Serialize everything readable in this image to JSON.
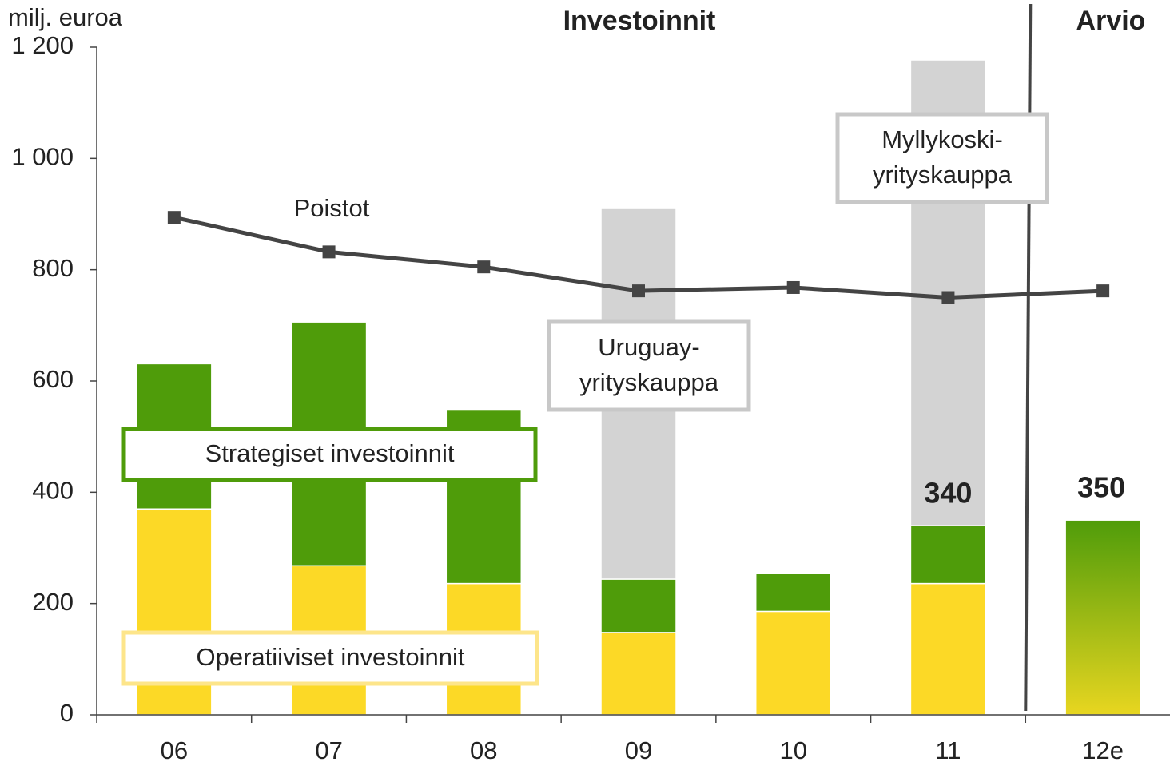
{
  "chart_data": {
    "type": "bar",
    "y_label": "milj. euroa",
    "headers": [
      "Investoinnit",
      "Arvio"
    ],
    "categories": [
      "06",
      "07",
      "08",
      "09",
      "10",
      "11",
      "12e"
    ],
    "series": [
      {
        "name": "Operatiiviset investoinnit",
        "color": "#fcd926",
        "values": [
          370,
          268,
          236,
          148,
          186,
          236,
          null
        ]
      },
      {
        "name": "Strategiset investoinnit",
        "color": "#4f9c0a",
        "values": [
          261,
          438,
          313,
          96,
          69,
          104,
          null
        ]
      },
      {
        "color": "#d3d3d3",
        "values": [
          null,
          null,
          null,
          666,
          null,
          837,
          null
        ]
      },
      {
        "color": "#4f9c0a",
        "gradient": [
          "#4f9c0a",
          "#e8d620"
        ],
        "values": [
          null,
          null,
          null,
          null,
          null,
          null,
          350
        ]
      }
    ],
    "line": {
      "name": "Poistot",
      "color": "#444444",
      "values": [
        894,
        832,
        805,
        762,
        768,
        750,
        762
      ]
    },
    "total_labels": [
      null,
      null,
      null,
      null,
      null,
      340,
      350
    ],
    "annotations": [
      {
        "lines": [
          "Uruguay-",
          "yrityskauppa"
        ]
      },
      {
        "lines": [
          "Myllykoski-",
          "yrityskauppa"
        ]
      }
    ],
    "ylim": [
      0,
      1200
    ],
    "yticks": [
      0,
      200,
      400,
      600,
      800,
      {
        "value": 1000,
        "label": "1 000"
      },
      {
        "value": 1200,
        "label": "1 200"
      }
    ]
  }
}
